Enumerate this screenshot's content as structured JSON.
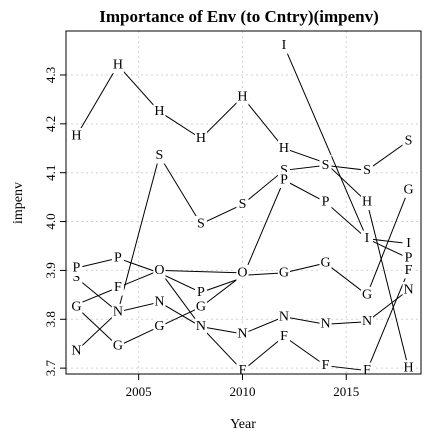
{
  "chart_data": {
    "type": "line",
    "title": "Importance of Env (to Cntry)(impenv)",
    "xlabel": "Year",
    "ylabel": "impenv",
    "xlim": [
      2001.5,
      2018.6
    ],
    "ylim": [
      3.688,
      4.39
    ],
    "x_ticks": [
      2005,
      2010,
      2015
    ],
    "y_ticks": [
      3.7,
      3.8,
      3.9,
      4.0,
      4.1,
      4.2,
      4.3
    ],
    "grid": true,
    "legend": "none",
    "series": [
      {
        "label": "H",
        "x": [
          2002,
          2004,
          2006,
          2008,
          2010,
          2012,
          2014,
          2016,
          2018
        ],
        "y": [
          4.175,
          4.32,
          4.225,
          4.17,
          4.255,
          4.15,
          4.12,
          4.04,
          3.7
        ]
      },
      {
        "label": "S",
        "x": [
          2002,
          2004,
          2006,
          2008,
          2010,
          2012,
          2014,
          2016,
          2018
        ],
        "y": [
          3.885,
          3.815,
          4.135,
          3.995,
          4.035,
          4.105,
          4.115,
          4.105,
          4.165
        ]
      },
      {
        "label": "P",
        "x": [
          2002,
          2004,
          2006,
          2008,
          2010,
          2012,
          2014,
          2016,
          2018
        ],
        "y": [
          3.905,
          3.925,
          3.895,
          3.855,
          3.885,
          4.085,
          4.04,
          3.965,
          3.925
        ]
      },
      {
        "label": "F",
        "x": [
          2002,
          2004,
          2006,
          2008,
          2010,
          2012,
          2014,
          2016,
          2018
        ],
        "y": [
          3.83,
          3.865,
          3.9,
          3.785,
          3.695,
          3.765,
          3.705,
          3.695,
          3.9
        ]
      },
      {
        "label": "G",
        "x": [
          2002,
          2004,
          2006,
          2008,
          2010,
          2012,
          2014,
          2016,
          2018
        ],
        "y": [
          3.825,
          3.745,
          3.785,
          3.825,
          3.89,
          3.895,
          3.915,
          3.85,
          4.065
        ]
      },
      {
        "label": "N",
        "x": [
          2002,
          2004,
          2006,
          2008,
          2010,
          2012,
          2014,
          2016,
          2018
        ],
        "y": [
          3.735,
          3.815,
          3.835,
          3.785,
          3.77,
          3.805,
          3.79,
          3.795,
          3.86
        ]
      },
      {
        "label": "O",
        "x": [
          2006,
          2010
        ],
        "y": [
          3.9,
          3.895
        ]
      },
      {
        "label": "I",
        "x": [
          2012,
          2016,
          2018
        ],
        "y": [
          4.36,
          3.965,
          3.955
        ]
      }
    ]
  }
}
